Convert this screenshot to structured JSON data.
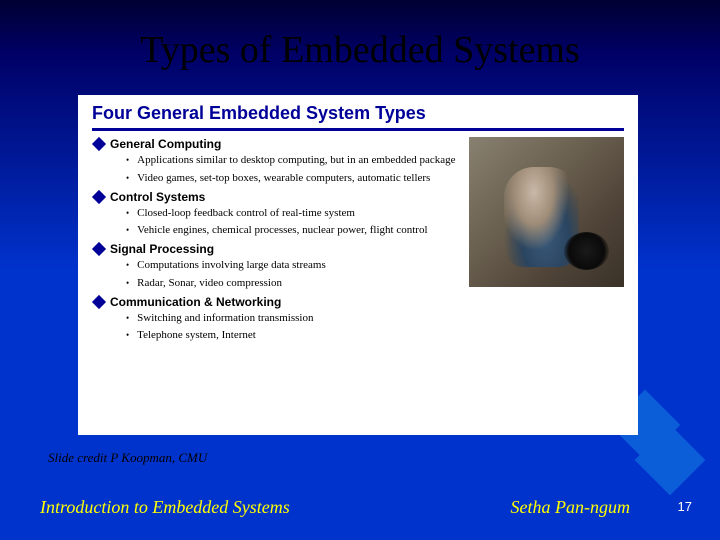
{
  "outer_title": "Types of Embedded Systems",
  "inner_title": "Four General Embedded System Types",
  "types": [
    {
      "label": "General Computing",
      "subs": [
        "Applications similar to desktop computing, but in an embedded package",
        "Video games, set-top boxes, wearable computers, automatic tellers"
      ]
    },
    {
      "label": "Control Systems",
      "subs": [
        "Closed-loop feedback control of real-time system",
        "Vehicle engines, chemical processes, nuclear power, flight control"
      ]
    },
    {
      "label": "Signal Processing",
      "subs": [
        "Computations involving large data streams",
        "Radar, Sonar, video compression"
      ]
    },
    {
      "label": "Communication & Networking",
      "subs": [
        "Switching and information transmission",
        "Telephone system, Internet"
      ]
    }
  ],
  "credit": "Slide credit P Koopman, CMU",
  "footer_left": "Introduction to Embedded Systems",
  "footer_right": "Setha Pan-ngum",
  "slide_num": "17",
  "colors": {
    "bg_top": "#000033",
    "bg_bottom": "#0033cc",
    "accent_navy": "#000099",
    "footer_text": "#ffff00",
    "title_black": "#000000",
    "slide_num_color": "#ffffff",
    "deco_square": "#0b5ed7"
  }
}
